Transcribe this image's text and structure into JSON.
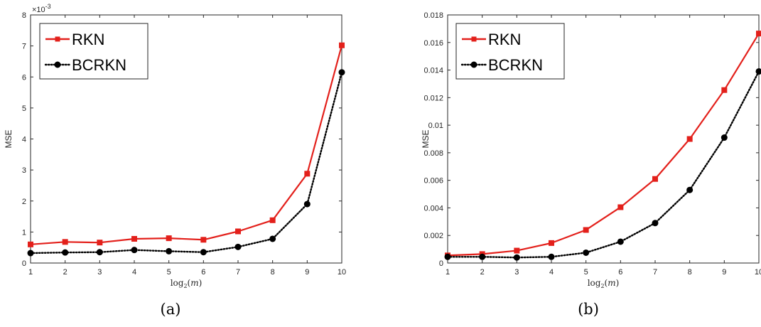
{
  "chart_data": [
    {
      "type": "line",
      "caption": "(a)",
      "ylabel": "MSE",
      "xlabel": "log2(m)",
      "exponent_label": "×10",
      "exponent_power": "-3",
      "x": [
        1,
        2,
        3,
        4,
        5,
        6,
        7,
        8,
        9,
        10
      ],
      "xlim": [
        1,
        10
      ],
      "ylim": [
        0,
        8
      ],
      "yticks": [
        "0",
        "1",
        "2",
        "3",
        "4",
        "5",
        "6",
        "7",
        "8"
      ],
      "xticks": [
        "1",
        "2",
        "3",
        "4",
        "5",
        "6",
        "7",
        "8",
        "9",
        "10"
      ],
      "legend_position": "top-left",
      "grid": false,
      "series": [
        {
          "name": "RKN",
          "color": "#e3201b",
          "marker": "square",
          "line_style": "solid",
          "values": [
            0.6,
            0.68,
            0.66,
            0.78,
            0.8,
            0.75,
            1.02,
            1.38,
            2.88,
            7.02
          ]
        },
        {
          "name": "BCRKN",
          "color": "#000000",
          "marker": "circle",
          "line_style": "dotted",
          "values": [
            0.32,
            0.34,
            0.35,
            0.42,
            0.38,
            0.35,
            0.52,
            0.78,
            1.9,
            6.15
          ]
        }
      ]
    },
    {
      "type": "line",
      "caption": "(b)",
      "ylabel": "MSE",
      "xlabel": "log2(m)",
      "x": [
        1,
        2,
        3,
        4,
        5,
        6,
        7,
        8,
        9,
        10
      ],
      "xlim": [
        1,
        10
      ],
      "ylim": [
        0,
        0.018
      ],
      "yticks": [
        "0",
        "0.002",
        "0.004",
        "0.006",
        "0.008",
        "0.01",
        "0.012",
        "0.014",
        "0.016",
        "0.018"
      ],
      "xticks": [
        "1",
        "2",
        "3",
        "4",
        "5",
        "6",
        "7",
        "8",
        "9",
        "10"
      ],
      "legend_position": "top-left",
      "grid": false,
      "series": [
        {
          "name": "RKN",
          "color": "#e3201b",
          "marker": "square",
          "line_style": "solid",
          "values": [
            0.00055,
            0.00065,
            0.0009,
            0.00145,
            0.0024,
            0.00405,
            0.0061,
            0.009,
            0.01255,
            0.01665
          ]
        },
        {
          "name": "BCRKN",
          "color": "#000000",
          "marker": "circle",
          "line_style": "dotted",
          "values": [
            0.00045,
            0.00045,
            0.0004,
            0.00045,
            0.00075,
            0.00155,
            0.0029,
            0.0053,
            0.0091,
            0.0139
          ]
        }
      ]
    }
  ]
}
